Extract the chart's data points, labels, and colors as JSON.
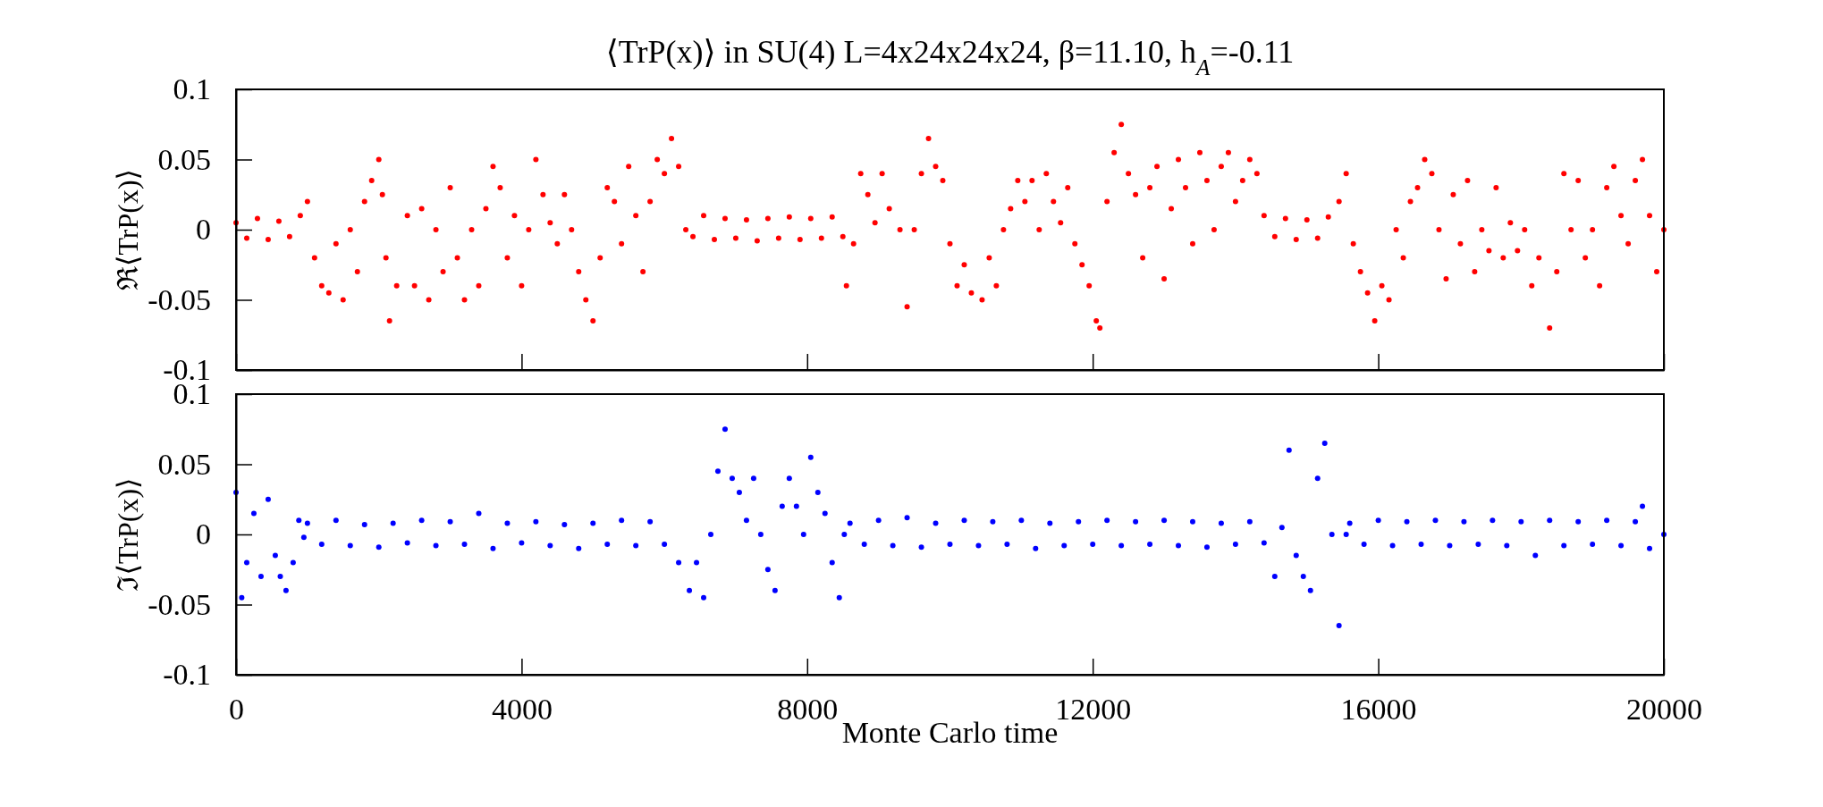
{
  "chart_data": [
    {
      "type": "scatter",
      "title": "⟨TrP(x)⟩ in SU(4) L=4x24x24x24, β=11.10, h$_{A}$=-0.11",
      "ylabel": "ℜ⟨TrP(x)⟩",
      "marker": "circle",
      "tick_labels": "y",
      "xlim": [
        0,
        20000
      ],
      "xticks": [
        0,
        4000,
        8000,
        12000,
        16000,
        20000
      ],
      "ylim": [
        -0.1,
        0.1
      ],
      "yticks": [
        -0.1,
        -0.05,
        0,
        0.05,
        0.1
      ],
      "series": [
        {
          "color": "#ff0000",
          "x": [
            0,
            150,
            300,
            450,
            600,
            750,
            900,
            1000,
            1100,
            1200,
            1300,
            1400,
            1500,
            1600,
            1700,
            1800,
            1900,
            2000,
            2050,
            2100,
            2150,
            2250,
            2400,
            2500,
            2600,
            2700,
            2800,
            2900,
            3000,
            3100,
            3200,
            3300,
            3400,
            3500,
            3600,
            3700,
            3800,
            3900,
            4000,
            4100,
            4200,
            4300,
            4400,
            4500,
            4600,
            4700,
            4800,
            4900,
            5000,
            5100,
            5200,
            5300,
            5400,
            5500,
            5600,
            5700,
            5800,
            5900,
            6000,
            6100,
            6200,
            6300,
            6400,
            6550,
            6700,
            6850,
            7000,
            7150,
            7300,
            7450,
            7600,
            7750,
            7900,
            8050,
            8200,
            8350,
            8500,
            8550,
            8650,
            8750,
            8850,
            8950,
            9050,
            9150,
            9300,
            9400,
            9500,
            9600,
            9700,
            9800,
            9900,
            10000,
            10100,
            10200,
            10300,
            10450,
            10550,
            10650,
            10750,
            10850,
            10950,
            11050,
            11150,
            11250,
            11350,
            11450,
            11550,
            11650,
            11750,
            11850,
            11950,
            12050,
            12100,
            12200,
            12300,
            12400,
            12500,
            12600,
            12700,
            12800,
            12900,
            13000,
            13100,
            13200,
            13300,
            13400,
            13500,
            13600,
            13700,
            13800,
            13900,
            14000,
            14100,
            14200,
            14300,
            14400,
            14550,
            14700,
            14850,
            15000,
            15150,
            15300,
            15450,
            15550,
            15650,
            15750,
            15850,
            15950,
            16050,
            16150,
            16250,
            16350,
            16450,
            16550,
            16650,
            16750,
            16850,
            16950,
            17050,
            17150,
            17250,
            17350,
            17450,
            17550,
            17650,
            17750,
            17850,
            17950,
            18050,
            18150,
            18250,
            18400,
            18500,
            18600,
            18700,
            18800,
            18900,
            19000,
            19100,
            19200,
            19300,
            19400,
            19500,
            19600,
            19700,
            19800,
            19900,
            20000
          ],
          "values": [
            0.005,
            -0.006,
            0.008,
            -0.007,
            0.006,
            -0.005,
            0.01,
            0.02,
            -0.02,
            -0.04,
            -0.045,
            -0.01,
            -0.05,
            0.0,
            -0.03,
            0.02,
            0.035,
            0.05,
            0.025,
            -0.02,
            -0.065,
            -0.04,
            0.01,
            -0.04,
            0.015,
            -0.05,
            0.0,
            -0.03,
            0.03,
            -0.02,
            -0.05,
            0.0,
            -0.04,
            0.015,
            0.045,
            0.03,
            -0.02,
            0.01,
            -0.04,
            0.0,
            0.05,
            0.025,
            0.005,
            -0.01,
            0.025,
            0.0,
            -0.03,
            -0.05,
            -0.065,
            -0.02,
            0.03,
            0.02,
            -0.01,
            0.045,
            0.01,
            -0.03,
            0.02,
            0.05,
            0.04,
            0.065,
            0.045,
            0.0,
            -0.005,
            0.01,
            -0.007,
            0.008,
            -0.006,
            0.007,
            -0.008,
            0.008,
            -0.006,
            0.009,
            -0.007,
            0.008,
            -0.006,
            0.009,
            -0.005,
            -0.04,
            -0.01,
            0.04,
            0.025,
            0.005,
            0.04,
            0.015,
            0.0,
            -0.055,
            0.0,
            0.04,
            0.065,
            0.045,
            0.035,
            -0.01,
            -0.04,
            -0.025,
            -0.045,
            -0.05,
            -0.02,
            -0.04,
            0.0,
            0.015,
            0.035,
            0.02,
            0.035,
            0.0,
            0.04,
            0.02,
            0.005,
            0.03,
            -0.01,
            -0.025,
            -0.04,
            -0.065,
            -0.07,
            0.02,
            0.055,
            0.075,
            0.04,
            0.025,
            -0.02,
            0.03,
            0.045,
            -0.035,
            0.015,
            0.05,
            0.03,
            -0.01,
            0.055,
            0.035,
            0.0,
            0.045,
            0.055,
            0.02,
            0.035,
            0.05,
            0.04,
            0.01,
            -0.005,
            0.008,
            -0.007,
            0.007,
            -0.006,
            0.009,
            0.02,
            0.04,
            -0.01,
            -0.03,
            -0.045,
            -0.065,
            -0.04,
            -0.05,
            0.0,
            -0.02,
            0.02,
            0.03,
            0.05,
            0.04,
            0.0,
            -0.035,
            0.025,
            -0.01,
            0.035,
            -0.03,
            0.0,
            -0.015,
            0.03,
            -0.02,
            0.005,
            -0.015,
            0.0,
            -0.04,
            -0.02,
            -0.07,
            -0.03,
            0.04,
            0.0,
            0.035,
            -0.02,
            0.0,
            -0.04,
            0.03,
            0.045,
            0.01,
            -0.01,
            0.035,
            0.05,
            0.01,
            -0.03,
            0.0
          ]
        }
      ]
    },
    {
      "type": "scatter",
      "ylabel": "ℑ⟨TrP(x)⟩",
      "xlabel": "Monte Carlo time",
      "marker": "circle",
      "xlim": [
        0,
        20000
      ],
      "xticks": [
        0,
        4000,
        8000,
        12000,
        16000,
        20000
      ],
      "ylim": [
        -0.1,
        0.1
      ],
      "yticks": [
        -0.1,
        -0.05,
        0,
        0.05,
        0.1
      ],
      "series": [
        {
          "color": "#0000ff",
          "x": [
            0,
            80,
            150,
            250,
            350,
            450,
            550,
            620,
            700,
            800,
            880,
            950,
            1000,
            1200,
            1400,
            1600,
            1800,
            2000,
            2200,
            2400,
            2600,
            2800,
            3000,
            3200,
            3400,
            3600,
            3800,
            4000,
            4200,
            4400,
            4600,
            4800,
            5000,
            5200,
            5400,
            5600,
            5800,
            6000,
            6200,
            6350,
            6450,
            6550,
            6650,
            6750,
            6850,
            6950,
            7050,
            7150,
            7250,
            7350,
            7450,
            7550,
            7650,
            7750,
            7850,
            7950,
            8050,
            8150,
            8250,
            8350,
            8450,
            8520,
            8600,
            8800,
            9000,
            9200,
            9400,
            9600,
            9800,
            10000,
            10200,
            10400,
            10600,
            10800,
            11000,
            11200,
            11400,
            11600,
            11800,
            12000,
            12200,
            12400,
            12600,
            12800,
            13000,
            13200,
            13400,
            13600,
            13800,
            14000,
            14200,
            14400,
            14550,
            14650,
            14750,
            14850,
            14950,
            15050,
            15150,
            15250,
            15350,
            15450,
            15550,
            15600,
            15800,
            16000,
            16200,
            16400,
            16600,
            16800,
            17000,
            17200,
            17400,
            17600,
            17800,
            18000,
            18200,
            18400,
            18600,
            18800,
            19000,
            19200,
            19400,
            19600,
            19700,
            19800,
            20000
          ],
          "values": [
            0.03,
            -0.045,
            -0.02,
            0.015,
            -0.03,
            0.025,
            -0.015,
            -0.03,
            -0.04,
            -0.02,
            0.01,
            -0.002,
            0.008,
            -0.007,
            0.01,
            -0.008,
            0.007,
            -0.009,
            0.008,
            -0.006,
            0.01,
            -0.008,
            0.009,
            -0.007,
            0.015,
            -0.01,
            0.008,
            -0.006,
            0.009,
            -0.008,
            0.007,
            -0.01,
            0.008,
            -0.007,
            0.01,
            -0.008,
            0.009,
            -0.007,
            -0.02,
            -0.04,
            -0.02,
            -0.045,
            0.0,
            0.045,
            0.075,
            0.04,
            0.03,
            0.01,
            0.04,
            0.0,
            -0.025,
            -0.04,
            0.02,
            0.04,
            0.02,
            0.0,
            0.055,
            0.03,
            0.015,
            -0.02,
            -0.045,
            0.0,
            0.008,
            -0.007,
            0.01,
            -0.008,
            0.012,
            -0.009,
            0.008,
            -0.007,
            0.01,
            -0.008,
            0.009,
            -0.007,
            0.01,
            -0.01,
            0.008,
            -0.008,
            0.009,
            -0.007,
            0.01,
            -0.008,
            0.009,
            -0.007,
            0.01,
            -0.008,
            0.009,
            -0.009,
            0.008,
            -0.007,
            0.009,
            -0.006,
            -0.03,
            0.005,
            0.06,
            -0.015,
            -0.03,
            -0.04,
            0.04,
            0.065,
            0.0,
            -0.065,
            0.0,
            0.008,
            -0.007,
            0.01,
            -0.008,
            0.009,
            -0.007,
            0.01,
            -0.008,
            0.009,
            -0.007,
            0.01,
            -0.008,
            0.009,
            -0.015,
            0.01,
            -0.008,
            0.009,
            -0.007,
            0.01,
            -0.008,
            0.009,
            0.02,
            -0.01,
            0.0
          ]
        }
      ]
    }
  ]
}
